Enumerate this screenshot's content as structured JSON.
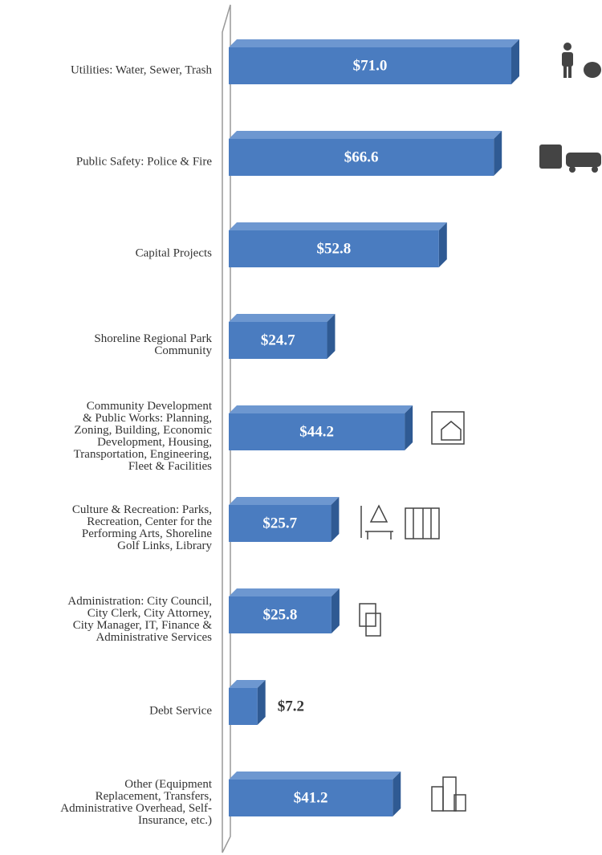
{
  "chart_data": {
    "type": "bar",
    "orientation": "horizontal",
    "categories": [
      "Utilities:  Water, Sewer, Trash",
      "Public Safety:  Police & Fire",
      "Capital Projects",
      "Shoreline Regional Park\nCommunity",
      "Community Development\n& Public Works:  Planning,\nZoning, Building, Economic\nDevelopment, Housing,\nTransportation, Engineering,\nFleet & Facilities",
      "Culture & Recreation:  Parks,\nRecreation, Center for the\nPerforming Arts, Shoreline\nGolf Links, Library",
      "Administration:  City Council,\nCity Clerk, City Attorney,\nCity Manager, IT, Finance &\nAdministrative Services",
      "Debt Service",
      "Other (Equipment\nReplacement, Transfers,\nAdministrative Overhead, Self-\nInsurance, etc.)"
    ],
    "values": [
      71.0,
      66.6,
      52.8,
      24.7,
      44.2,
      25.7,
      25.8,
      7.2,
      41.2
    ],
    "value_labels": [
      "$71.0",
      "$66.6",
      "$52.8",
      "$24.7",
      "$44.2",
      "$25.7",
      "$25.8",
      "$7.2",
      "$41.2"
    ],
    "color": "#4a7cc0"
  }
}
